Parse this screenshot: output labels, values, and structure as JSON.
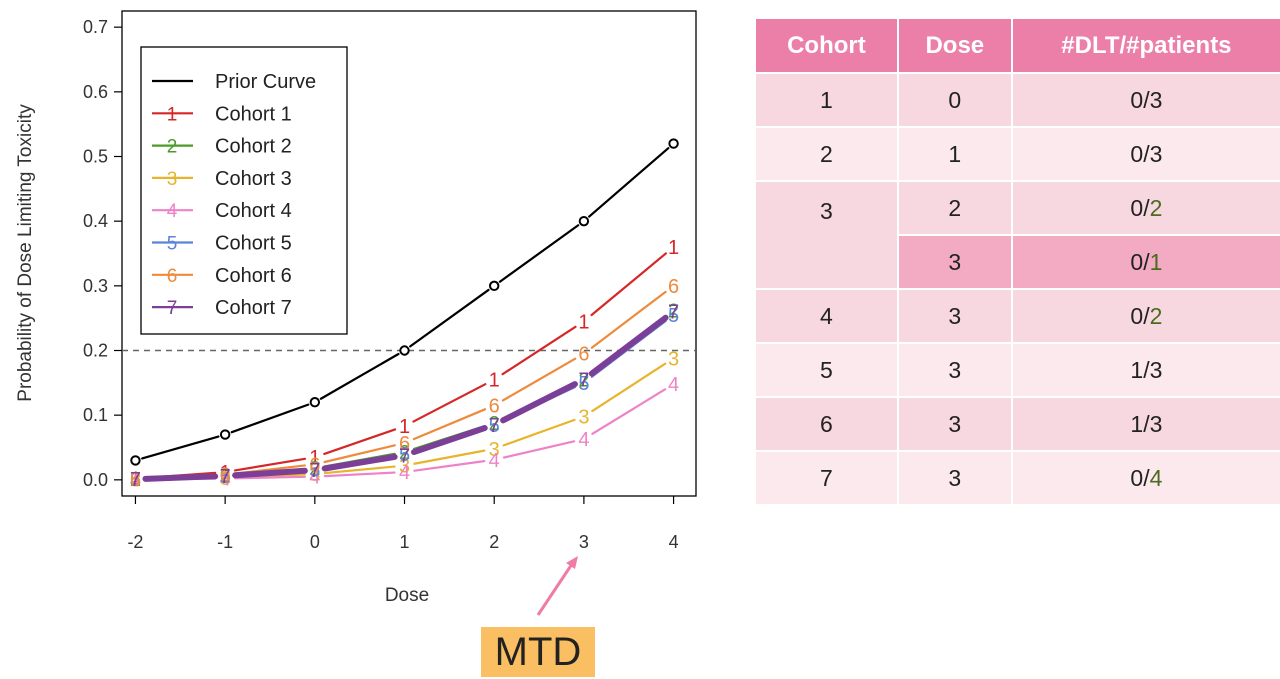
{
  "chart_data": {
    "type": "line",
    "ylabel": "Probability of Dose Limiting Toxicity",
    "xlabel": "Dose",
    "x": [
      -2,
      -1,
      0,
      1,
      2,
      3,
      4
    ],
    "xticks": [
      "-2",
      "-1",
      "0",
      "1",
      "2",
      "3",
      "4"
    ],
    "yticks": [
      "0.0",
      "0.1",
      "0.2",
      "0.3",
      "0.4",
      "0.5",
      "0.6",
      "0.7"
    ],
    "xlim": [
      -2.15,
      4.25
    ],
    "ylim": [
      -0.025,
      0.725
    ],
    "target_line": 0.2,
    "legend_position": "top-left",
    "series": [
      {
        "name": "Prior Curve",
        "marker": "o",
        "color": "#000000",
        "values": [
          0.03,
          0.07,
          0.12,
          0.2,
          0.3,
          0.4,
          0.52
        ]
      },
      {
        "name": "Cohort 1",
        "marker": "1",
        "color": "#d62728",
        "values": [
          0.002,
          0.012,
          0.035,
          0.083,
          0.155,
          0.245,
          0.36
        ]
      },
      {
        "name": "Cohort 2",
        "marker": "2",
        "color": "#4c9a2a",
        "values": [
          0.001,
          0.006,
          0.018,
          0.043,
          0.088,
          0.155,
          0.262
        ]
      },
      {
        "name": "Cohort 3",
        "marker": "3",
        "color": "#e8b42c",
        "values": [
          0.0005,
          0.003,
          0.009,
          0.022,
          0.048,
          0.098,
          0.188
        ]
      },
      {
        "name": "Cohort 4",
        "marker": "4",
        "color": "#ee82c8",
        "values": [
          0.0003,
          0.002,
          0.005,
          0.012,
          0.031,
          0.063,
          0.148
        ]
      },
      {
        "name": "Cohort 5",
        "marker": "5",
        "color": "#5b84d6",
        "values": [
          0.001,
          0.006,
          0.016,
          0.04,
          0.085,
          0.15,
          0.255
        ]
      },
      {
        "name": "Cohort 6",
        "marker": "6",
        "color": "#ee8a3c",
        "values": [
          0.001,
          0.008,
          0.024,
          0.057,
          0.115,
          0.195,
          0.3
        ]
      },
      {
        "name": "Cohort 7",
        "marker": "7",
        "color": "#7b3f98",
        "values": [
          0.001,
          0.006,
          0.015,
          0.038,
          0.085,
          0.155,
          0.26
        ]
      }
    ],
    "annotation": {
      "text": "MTD",
      "x": 3
    }
  },
  "table": {
    "headers": [
      "Cohort",
      "Dose",
      "#DLT/#patients"
    ],
    "rows": [
      {
        "cohort": "1",
        "dose": "0",
        "dlt": "0/",
        "patients": "3"
      },
      {
        "cohort": "2",
        "dose": "1",
        "dlt": "0/",
        "patients": "3"
      },
      {
        "cohort": "3",
        "dose": "2",
        "dlt": "0/",
        "patients": "2"
      },
      {
        "cohort": "",
        "dose": "3",
        "dlt": "0/",
        "patients": "1"
      },
      {
        "cohort": "4",
        "dose": "3",
        "dlt": "0/",
        "patients": "2"
      },
      {
        "cohort": "5",
        "dose": "3",
        "dlt": "1/",
        "patients": "3"
      },
      {
        "cohort": "6",
        "dose": "3",
        "dlt": "1/",
        "patients": "3"
      },
      {
        "cohort": "7",
        "dose": "3",
        "dlt": "0/",
        "patients": "4"
      }
    ]
  },
  "colors": {
    "header_bg": "#ec7fa7",
    "row_dark": "#f7d7e0",
    "row_light": "#fbe9ee",
    "row_highlight": "#f3aac3",
    "mtd_bg": "#fbbf63",
    "arrow": "#ee7ca5",
    "patients_green": "#4b6b1e"
  }
}
